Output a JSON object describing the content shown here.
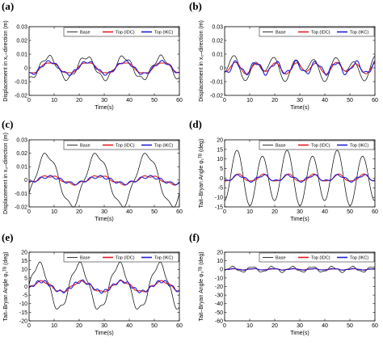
{
  "figure": {
    "legend_labels": [
      "Base",
      "Top (IDC)",
      "Top (IKC)"
    ],
    "colors": {
      "Base": "#000000",
      "Top (IDC)": "#e41a1c",
      "Top (IKC)": "#1f1fd6"
    }
  },
  "chart_data": [
    {
      "panel": "(a)",
      "type": "line",
      "xlabel": "Time(s)",
      "ylabel": "Displacement in  x₁–direction (m)",
      "xlim": [
        0,
        60
      ],
      "ylim": [
        -0.02,
        0.03
      ],
      "xticks": [
        0,
        10,
        20,
        30,
        40,
        50,
        60
      ],
      "yticks": [
        -0.02,
        -0.01,
        0,
        0.01,
        0.02,
        0.03
      ],
      "legend": "top-right",
      "series": [
        {
          "name": "Base",
          "amp": 0.008,
          "period": 15,
          "phase": 4.0,
          "amp2": 0.0015,
          "period2": 4
        },
        {
          "name": "Top (IDC)",
          "amp": 0.004,
          "period": 15,
          "phase": 4.5,
          "amp2": 0.0005,
          "period2": 5
        },
        {
          "name": "Top (IKC)",
          "amp": 0.0045,
          "period": 15,
          "phase": 4.5,
          "amp2": 0.001,
          "period2": 3.5
        }
      ]
    },
    {
      "panel": "(b)",
      "type": "line",
      "xlabel": "Time(s)",
      "ylabel": "Displacement in  x₂–direction (m)",
      "xlim": [
        0,
        60
      ],
      "ylim": [
        -0.02,
        0.03
      ],
      "xticks": [
        0,
        10,
        20,
        30,
        40,
        50,
        60
      ],
      "yticks": [
        -0.02,
        -0.01,
        0,
        0.01,
        0.02,
        0.03
      ],
      "legend": "top-right",
      "series": [
        {
          "name": "Base",
          "amp": 0.006,
          "period": 8,
          "phase": 2.0,
          "amp2": 0.004,
          "period2": 15
        },
        {
          "name": "Top (IDC)",
          "amp": 0.0035,
          "period": 8,
          "phase": 2.5,
          "amp2": 0.001,
          "period2": 15
        },
        {
          "name": "Top (IKC)",
          "amp": 0.004,
          "period": 8,
          "phase": 2.5,
          "amp2": 0.0015,
          "period2": 3.5
        }
      ]
    },
    {
      "panel": "(c)",
      "type": "line",
      "xlabel": "Time(s)",
      "ylabel": "Displacement in  x₃–direction (m)",
      "xlim": [
        0,
        60
      ],
      "ylim": [
        -0.02,
        0.03
      ],
      "xticks": [
        0,
        10,
        20,
        30,
        40,
        50,
        60
      ],
      "yticks": [
        -0.02,
        -0.01,
        0,
        0.01,
        0.02,
        0.03
      ],
      "legend": "top-right",
      "series": [
        {
          "name": "Base",
          "amp": 0.019,
          "period": 20,
          "phase": 2.0,
          "amp2": 0.002,
          "period2": 5
        },
        {
          "name": "Top (IDC)",
          "amp": 0.003,
          "period": 20,
          "phase": 3.0,
          "amp2": 0.0008,
          "period2": 5
        },
        {
          "name": "Top (IKC)",
          "amp": 0.0025,
          "period": 20,
          "phase": 3.0,
          "amp2": 0.001,
          "period2": 4
        }
      ]
    },
    {
      "panel": "(d)",
      "type": "line",
      "xlabel": "Time(s)",
      "ylabel": "Tait–Bryan Angle  φ₁ᵀᴮ (deg)",
      "xlim": [
        0,
        60
      ],
      "ylim": [
        -15,
        20
      ],
      "xticks": [
        0,
        10,
        20,
        30,
        40,
        50,
        60
      ],
      "yticks": [
        -15,
        -10,
        -5,
        0,
        5,
        10,
        15,
        20
      ],
      "legend": "top-right",
      "series": [
        {
          "name": "Base",
          "amp": 13,
          "period": 10,
          "phase": 2.5,
          "amp2": 2.0,
          "period2": 20
        },
        {
          "name": "Top (IDC)",
          "amp": 1.8,
          "period": 10,
          "phase": 3.0,
          "amp2": 0.4,
          "period2": 5
        },
        {
          "name": "Top (IKC)",
          "amp": 1.5,
          "period": 10,
          "phase": 3.0,
          "amp2": 0.6,
          "period2": 4
        }
      ]
    },
    {
      "panel": "(e)",
      "type": "line",
      "xlabel": "Time(s)",
      "ylabel": "Tait–Bryan Angle  φ₂ᵀᴮ (deg)",
      "xlim": [
        0,
        60
      ],
      "ylim": [
        -20,
        20
      ],
      "xticks": [
        0,
        10,
        20,
        30,
        40,
        50,
        60
      ],
      "yticks": [
        -20,
        -15,
        -10,
        -5,
        0,
        5,
        10,
        15,
        20
      ],
      "legend": "top-right",
      "series": [
        {
          "name": "Base",
          "amp": 13,
          "period": 16,
          "phase": 0.0,
          "amp2": 1.5,
          "period2": 4
        },
        {
          "name": "Top (IDC)",
          "amp": 3.0,
          "period": 16,
          "phase": 1.0,
          "amp2": 0.5,
          "period2": 4
        },
        {
          "name": "Top (IKC)",
          "amp": 3.0,
          "period": 16,
          "phase": 1.0,
          "amp2": 0.9,
          "period2": 3
        }
      ]
    },
    {
      "panel": "(f)",
      "type": "line",
      "xlabel": "Time(s)",
      "ylabel": "Tait–Bryan Angle  φ₃ᵀᴮ (deg)",
      "xlim": [
        0,
        60
      ],
      "ylim": [
        -60,
        20
      ],
      "xticks": [
        0,
        10,
        20,
        30,
        40,
        50,
        60
      ],
      "yticks": [
        -60,
        -50,
        -40,
        -30,
        -20,
        -10,
        0,
        10,
        20
      ],
      "legend": "top-right",
      "series": [
        {
          "name": "Base",
          "amp": 3.0,
          "period": 8,
          "phase": 1.0,
          "amp2": 0.8,
          "period2": 3
        },
        {
          "name": "Top (IDC)",
          "amp": 0.6,
          "period": 8,
          "phase": 1.5,
          "amp2": 0.2,
          "period2": 4
        },
        {
          "name": "Top (IKC)",
          "amp": 0.8,
          "period": 8,
          "phase": 1.5,
          "amp2": 0.3,
          "period2": 3
        }
      ]
    }
  ]
}
